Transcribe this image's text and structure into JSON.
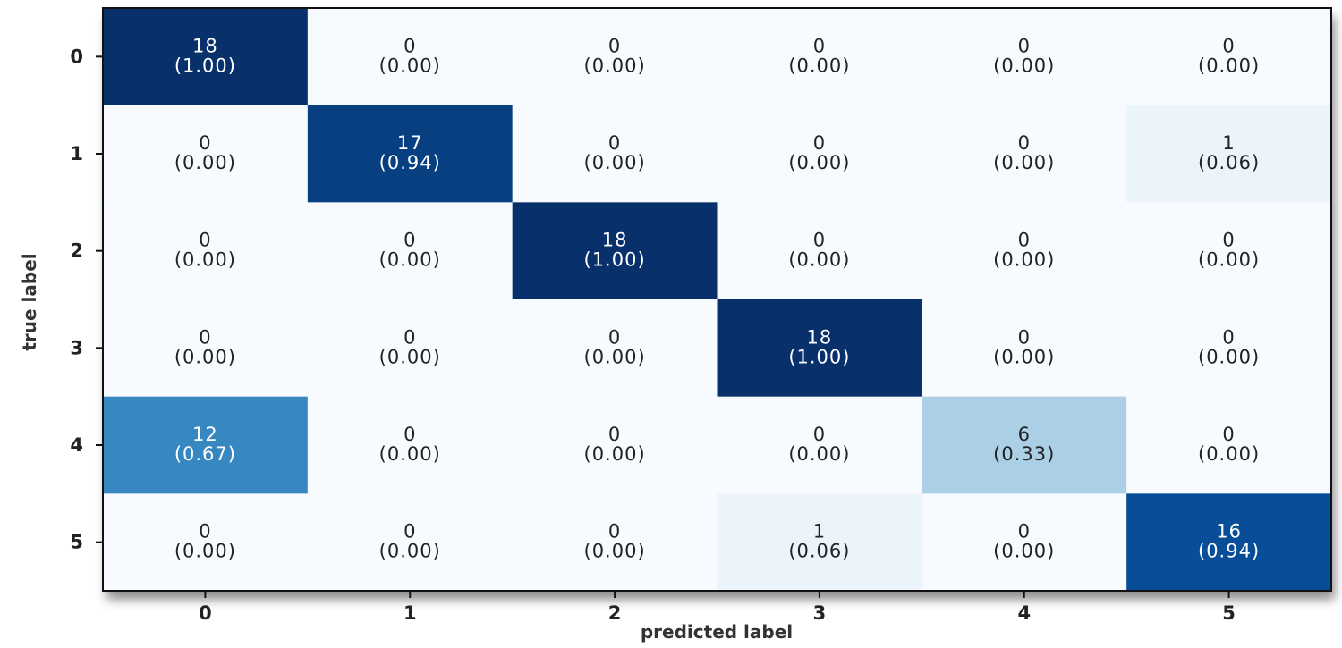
{
  "chart_data": {
    "type": "heatmap",
    "title": "",
    "xlabel": "predicted label",
    "ylabel": "true label",
    "x_categories": [
      "0",
      "1",
      "2",
      "3",
      "4",
      "5"
    ],
    "y_categories": [
      "0",
      "1",
      "2",
      "3",
      "4",
      "5"
    ],
    "counts": [
      [
        18,
        0,
        0,
        0,
        0,
        0
      ],
      [
        0,
        17,
        0,
        0,
        0,
        1
      ],
      [
        0,
        0,
        18,
        0,
        0,
        0
      ],
      [
        0,
        0,
        0,
        18,
        0,
        0
      ],
      [
        12,
        0,
        0,
        0,
        6,
        0
      ],
      [
        0,
        0,
        0,
        1,
        0,
        16
      ]
    ],
    "normalized": [
      [
        1.0,
        0.0,
        0.0,
        0.0,
        0.0,
        0.0
      ],
      [
        0.0,
        0.94,
        0.0,
        0.0,
        0.0,
        0.06
      ],
      [
        0.0,
        0.0,
        1.0,
        0.0,
        0.0,
        0.0
      ],
      [
        0.0,
        0.0,
        0.0,
        1.0,
        0.0,
        0.0
      ],
      [
        0.67,
        0.0,
        0.0,
        0.0,
        0.33,
        0.0
      ],
      [
        0.0,
        0.0,
        0.0,
        0.06,
        0.0,
        0.94
      ]
    ],
    "colormap": "Blues",
    "color_low": "#f7fbff",
    "color_high": "#08306b",
    "text_dark": "#222222",
    "text_light": "#ffffff",
    "grid": false,
    "colorbar": false
  }
}
